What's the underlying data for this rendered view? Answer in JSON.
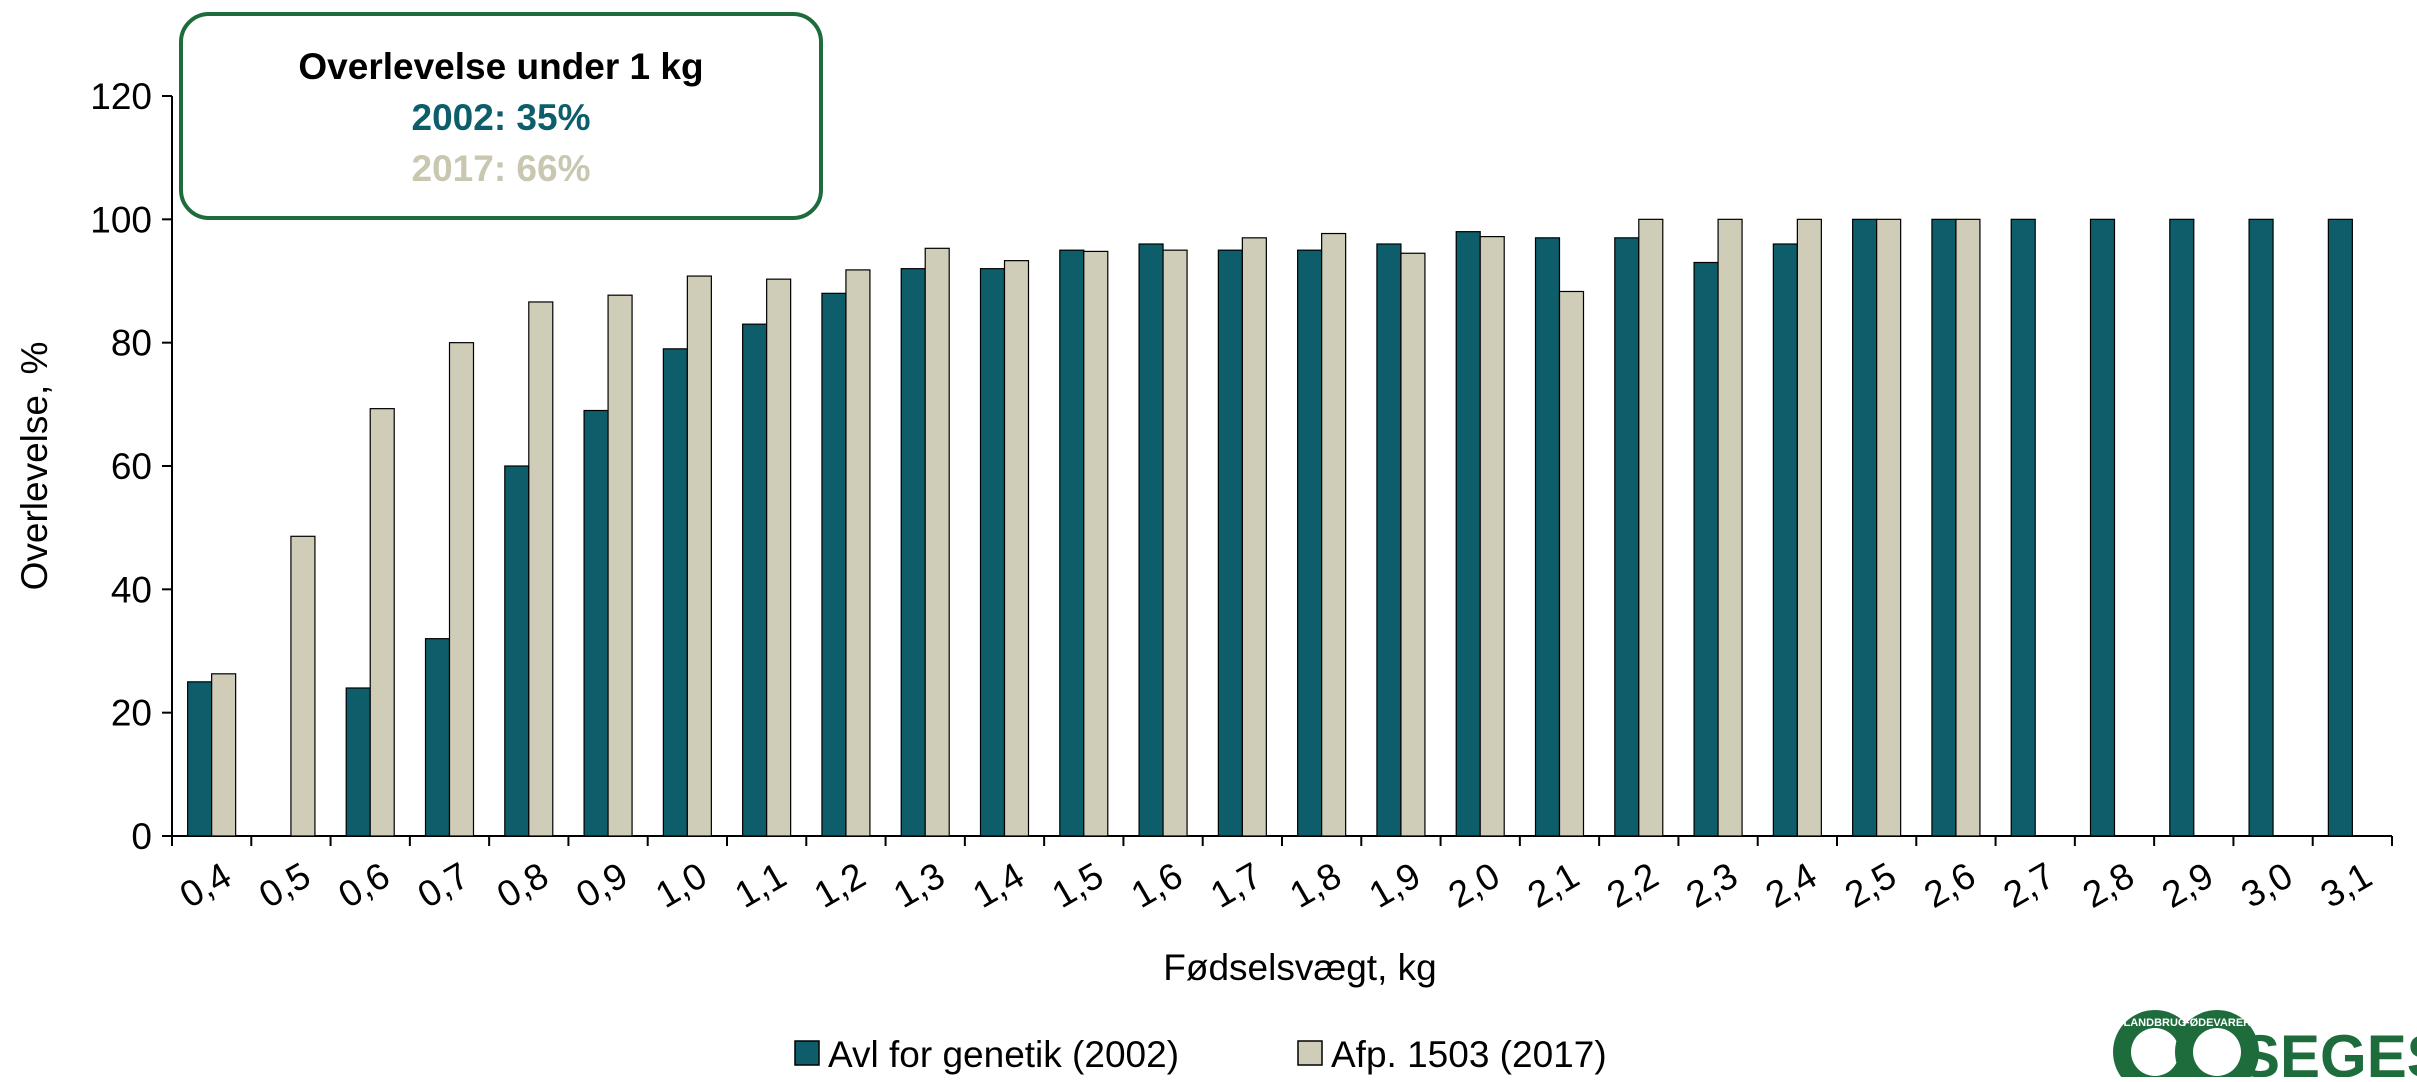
{
  "chart_data": {
    "type": "bar",
    "title": "",
    "xlabel": "Fødselsvægt, kg",
    "ylabel": "Overlevelse, %",
    "ylim": [
      0,
      120
    ],
    "yticks": [
      0,
      20,
      40,
      60,
      80,
      100,
      120
    ],
    "grid": false,
    "legend_position": "bottom",
    "categories": [
      "0,4",
      "0,5",
      "0,6",
      "0,7",
      "0,8",
      "0,9",
      "1,0",
      "1,1",
      "1,2",
      "1,3",
      "1,4",
      "1,5",
      "1,6",
      "1,7",
      "1,8",
      "1,9",
      "2,0",
      "2,1",
      "2,2",
      "2,3",
      "2,4",
      "2,5",
      "2,6",
      "2,7",
      "2,8",
      "2,9",
      "3,0",
      "3,1"
    ],
    "series": [
      {
        "name": "Avl for genetik (2002)",
        "color": "#0d5e6a",
        "values": [
          25,
          null,
          24,
          32,
          60,
          69,
          79,
          83,
          88,
          92,
          92,
          95,
          96,
          95,
          95,
          96,
          98,
          97,
          97,
          93,
          96,
          100,
          100,
          100,
          100,
          100,
          100,
          100
        ]
      },
      {
        "name": "Afp. 1503 (2017)",
        "color": "#cfcdb7",
        "values": [
          26.3,
          48.6,
          69.3,
          80,
          86.6,
          87.7,
          90.8,
          90.3,
          91.8,
          95.3,
          93.3,
          94.8,
          95,
          97,
          97.7,
          94.5,
          97.2,
          88.3,
          100,
          100,
          100,
          100,
          100,
          null,
          null,
          null,
          null,
          null
        ]
      }
    ],
    "annotation": {
      "title": "Overlevelse under 1 kg",
      "line1": "2002: 35%",
      "line2": "2017: 66%",
      "line1_color": "#0d5e6a",
      "line2_color": "#c9c7b0",
      "border_color": "#1e6b3c"
    }
  },
  "logo": {
    "text": "SEGES",
    "ring_text_left": "LANDBRUG",
    "ring_text_right": "FØDEVARER",
    "color": "#1e6b3c"
  }
}
